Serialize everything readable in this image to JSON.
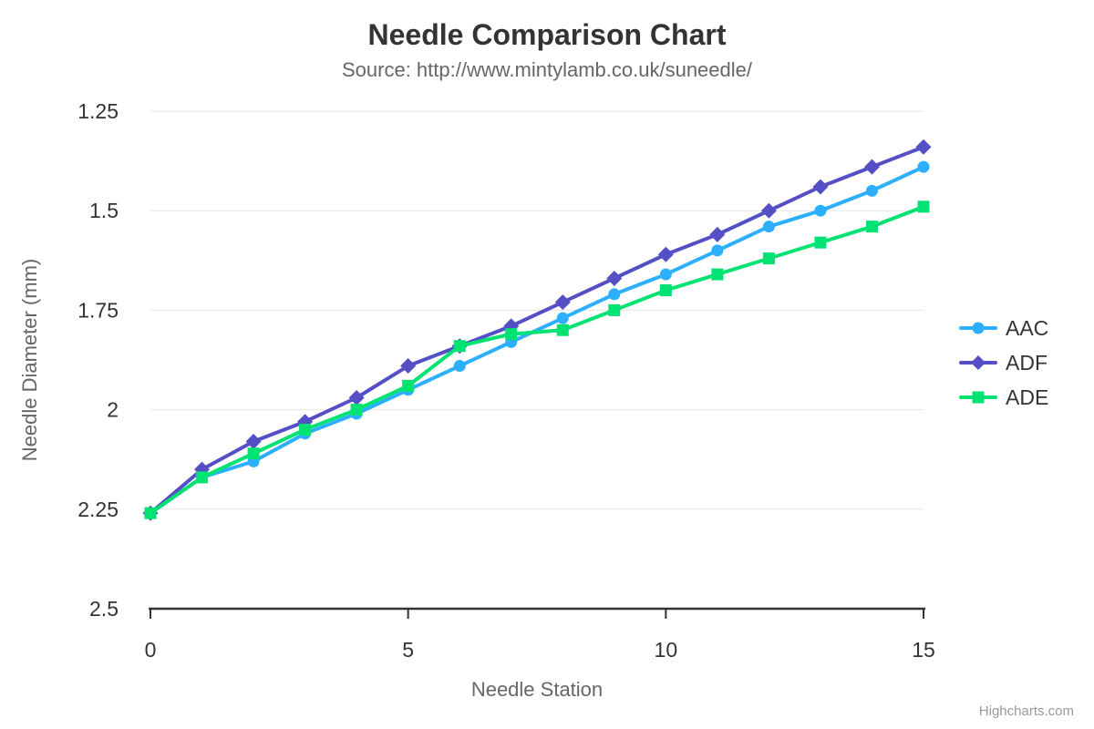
{
  "chart_data": {
    "type": "line",
    "title": "Needle Comparison Chart",
    "subtitle": "Source: http://www.mintylamb.co.uk/suneedle/",
    "xlabel": "Needle Station",
    "ylabel": "Needle Diameter (mm)",
    "x": [
      0,
      1,
      2,
      3,
      4,
      5,
      6,
      7,
      8,
      9,
      10,
      11,
      12,
      13,
      14,
      15
    ],
    "xlim": [
      0,
      15
    ],
    "ylim": [
      1.25,
      2.5
    ],
    "y_reversed": true,
    "xticks": [
      0,
      5,
      10,
      15
    ],
    "yticks": [
      1.25,
      1.5,
      1.75,
      2,
      2.25,
      2.5
    ],
    "grid": true,
    "legend_position": "right",
    "series": [
      {
        "name": "AAC",
        "color": "#2caffe",
        "marker": "circle",
        "values": [
          2.26,
          2.17,
          2.13,
          2.06,
          2.01,
          1.95,
          1.89,
          1.83,
          1.77,
          1.71,
          1.66,
          1.6,
          1.54,
          1.5,
          1.45,
          1.39
        ]
      },
      {
        "name": "ADF",
        "color": "#544fc5",
        "marker": "diamond",
        "values": [
          2.26,
          2.15,
          2.08,
          2.03,
          1.97,
          1.89,
          1.84,
          1.79,
          1.73,
          1.67,
          1.61,
          1.56,
          1.5,
          1.44,
          1.39,
          1.34
        ]
      },
      {
        "name": "ADE",
        "color": "#00e272",
        "marker": "square",
        "values": [
          2.26,
          2.17,
          2.11,
          2.05,
          2.0,
          1.94,
          1.84,
          1.81,
          1.8,
          1.75,
          1.7,
          1.66,
          1.62,
          1.58,
          1.54,
          1.49
        ]
      }
    ]
  },
  "credit": "Highcharts.com",
  "colors": {
    "grid": "#e6e6e6",
    "axis_line": "#333333",
    "tick_label": "#333333",
    "axis_title": "#666666",
    "credit_text": "#999999"
  }
}
